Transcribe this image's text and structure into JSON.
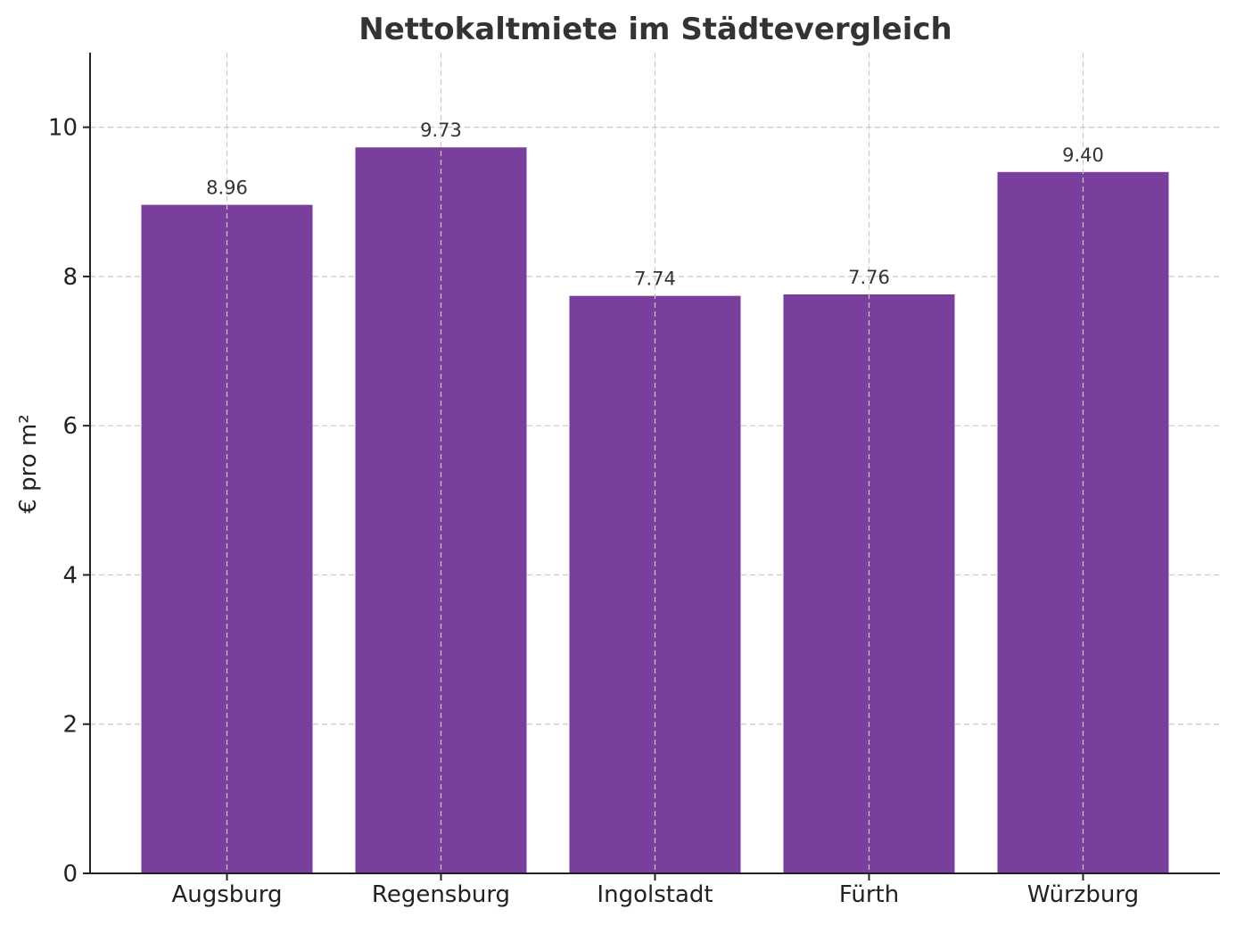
{
  "chart_data": {
    "type": "bar",
    "title": "Nettokaltmiete im Städtevergleich",
    "xlabel": "",
    "ylabel": "€ pro m²",
    "categories": [
      "Augsburg",
      "Regensburg",
      "Ingolstadt",
      "Fürth",
      "Würzburg"
    ],
    "values": [
      8.96,
      9.73,
      7.74,
      7.76,
      9.4
    ],
    "data_labels": [
      "8.96",
      "9.73",
      "7.74",
      "7.76",
      "9.40"
    ],
    "ylim": [
      0,
      11
    ],
    "yticks": [
      0,
      2,
      4,
      6,
      8,
      10
    ],
    "ytick_labels": [
      "0",
      "2",
      "4",
      "6",
      "8",
      "10"
    ],
    "grid": true,
    "bar_color": "#7a3e9d"
  }
}
